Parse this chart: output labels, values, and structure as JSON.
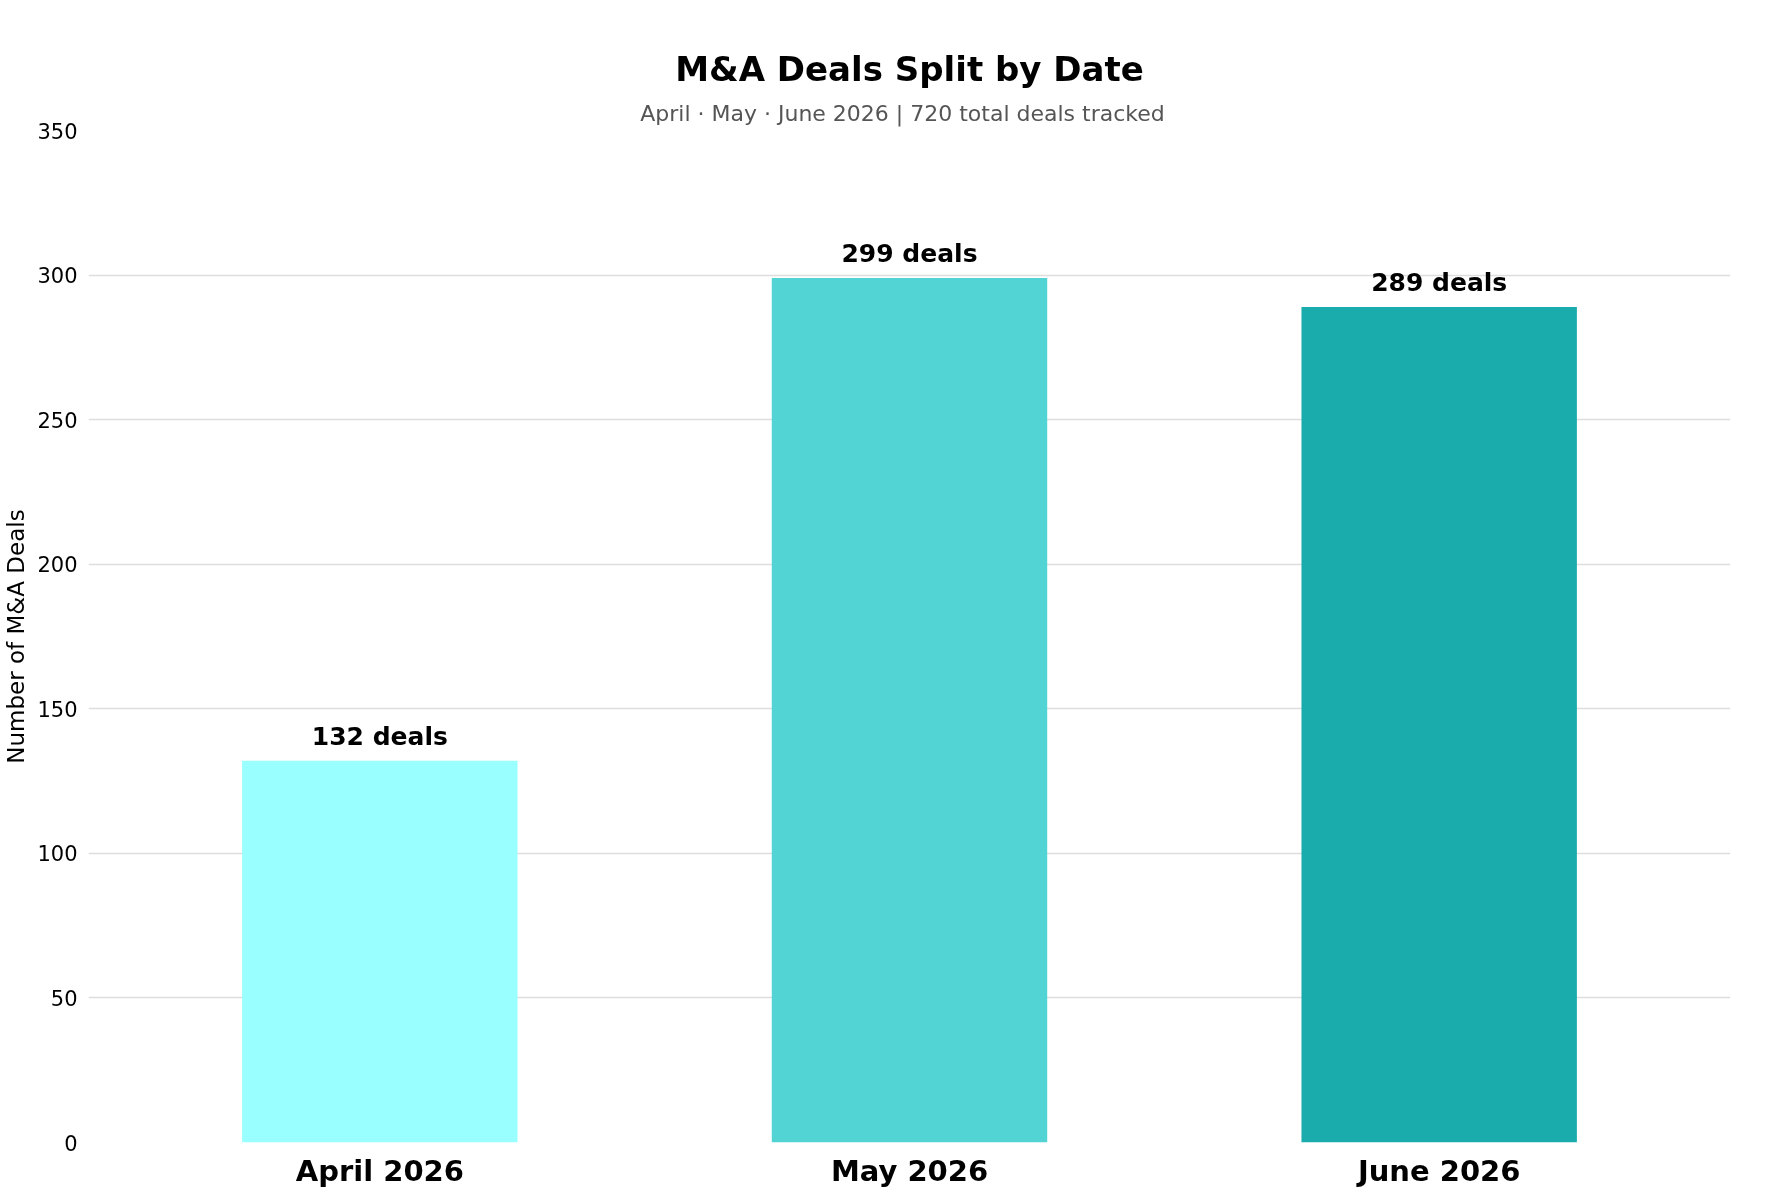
{
  "chart_data": {
    "type": "bar",
    "title": "M&A Deals Split by Date",
    "subtitle": "April · May · June 2026  |  720 total deals tracked",
    "ylabel": "Number of M&A Deals",
    "categories": [
      "April 2026",
      "May 2026",
      "June 2026"
    ],
    "values": [
      132,
      299,
      289
    ],
    "colors": [
      "#99ffff",
      "#53d4d4",
      "#1aacac"
    ],
    "value_labels": [
      "132 deals",
      "299 deals",
      "289 deals"
    ],
    "ylim": [
      0,
      350
    ],
    "yticks": [
      0,
      50,
      100,
      150,
      200,
      250,
      300,
      350
    ],
    "grid": "y"
  }
}
